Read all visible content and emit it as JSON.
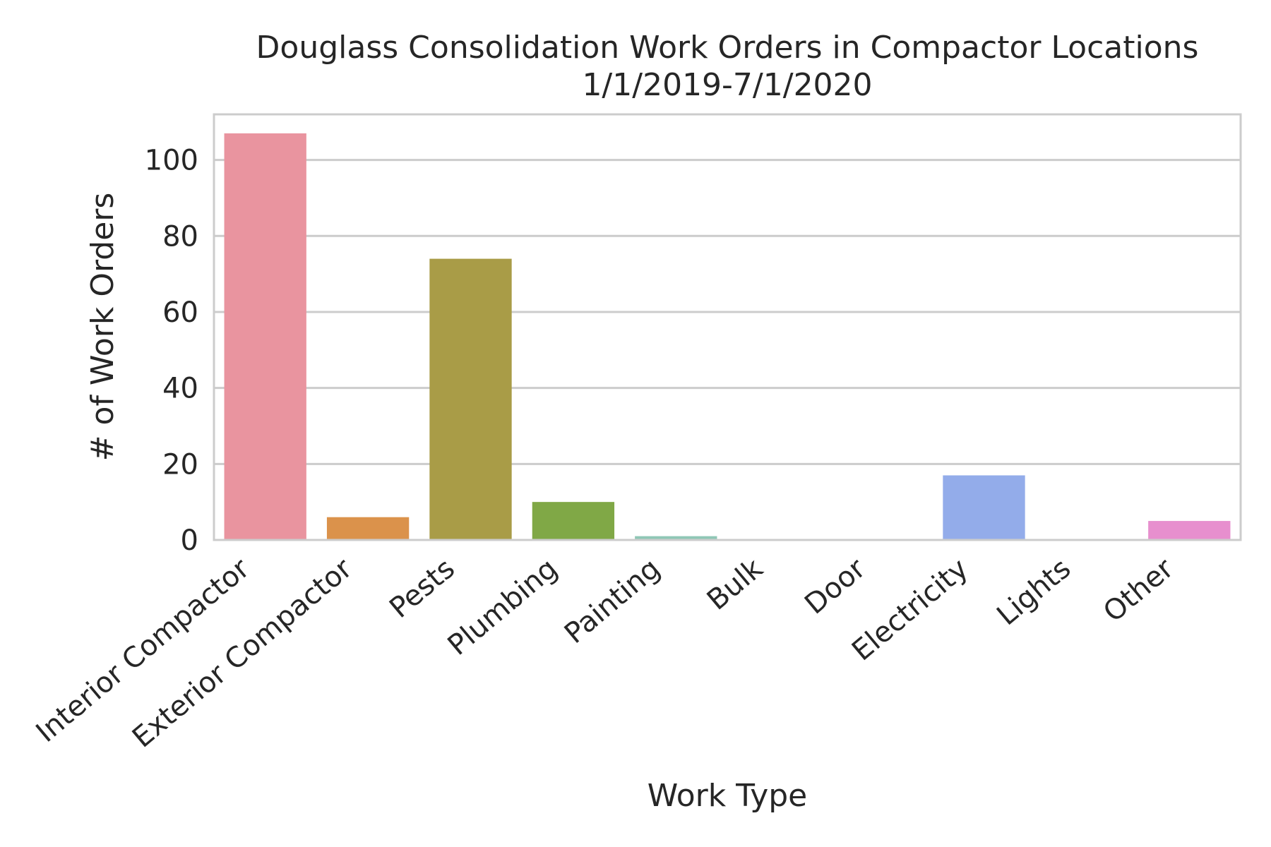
{
  "chart_data": {
    "type": "bar",
    "title_lines": [
      "Douglass Consolidation Work Orders in Compactor Locations",
      "1/1/2019-7/1/2020"
    ],
    "xlabel": "Work Type",
    "ylabel": "# of Work Orders",
    "categories": [
      "Interior Compactor",
      "Exterior Compactor",
      "Pests",
      "Plumbing",
      "Painting",
      "Bulk",
      "Door",
      "Electricity",
      "Lights",
      "Other"
    ],
    "values": [
      107,
      6,
      74,
      10,
      1,
      0,
      0,
      17,
      0,
      5
    ],
    "colors": [
      "#e9949f",
      "#db924b",
      "#a99c47",
      "#80a846",
      "#8fc7b6",
      "#85bdcf",
      "#8fb0dd",
      "#93acea",
      "#c6a2e7",
      "#e78fce"
    ],
    "ylim": [
      0,
      112
    ],
    "yticks": [
      0,
      20,
      40,
      60,
      80,
      100
    ],
    "grid": true,
    "legend": "none"
  }
}
